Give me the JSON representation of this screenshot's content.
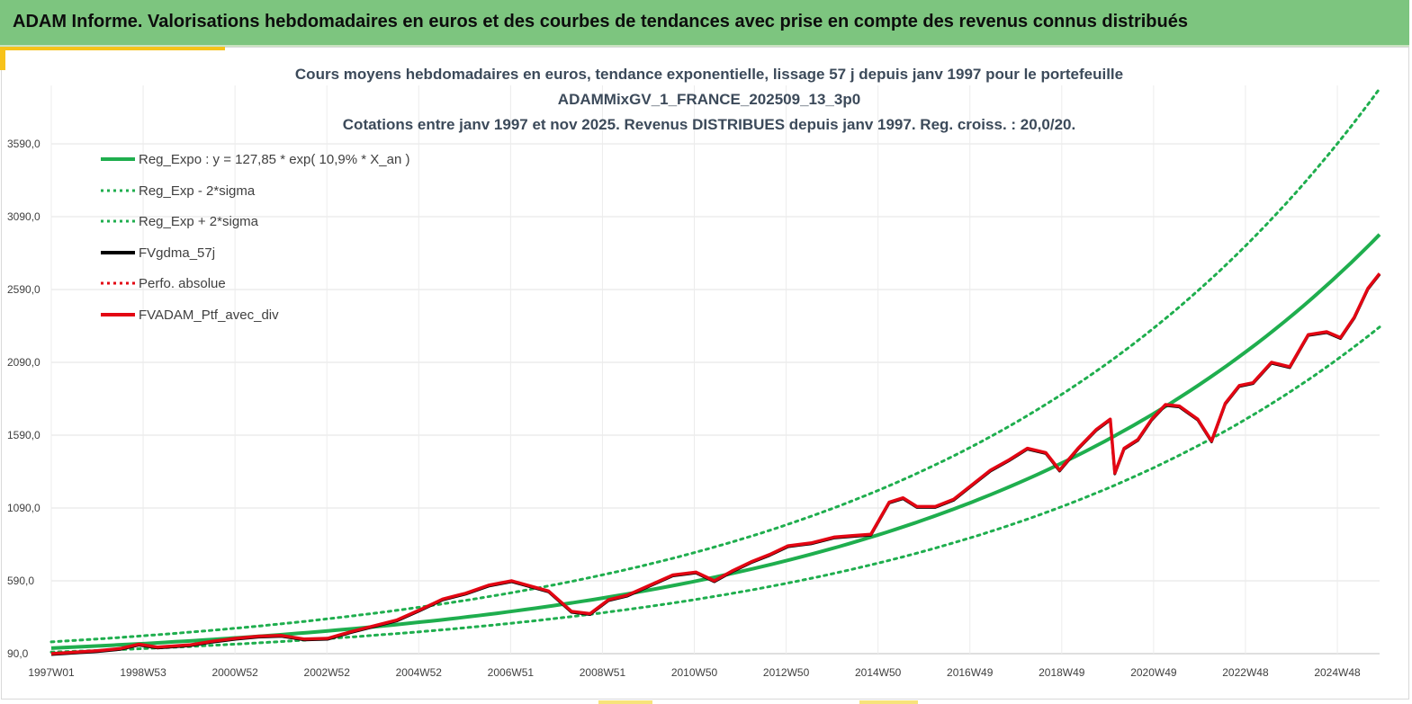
{
  "header": {
    "title": "ADAM Informe. Valorisations hebdomadaires en euros et des courbes de tendances avec prise en compte des revenus connus distribués"
  },
  "colors": {
    "banner": "#7dc57f",
    "accent": "#f7c21a",
    "trend": "#1fae4e",
    "smoothed": "#000000",
    "portfolio": "#e30613"
  },
  "chart_data": {
    "type": "line",
    "title_lines": [
      "Cours moyens hebdomadaires  en euros, tendance exponentielle, lissage 57 j depuis janv 1997 pour le portefeuille",
      "ADAMMixGV_1_FRANCE_202509_13_3p0",
      "Cotations  entre janv 1997 et nov 2025. Revenus DISTRIBUES depuis janv 1997. Reg. croiss. : 20,0/20."
    ],
    "x_ticks": [
      "1997W01",
      "1998W53",
      "2000W52",
      "2002W52",
      "2004W52",
      "2006W51",
      "2008W51",
      "2010W50",
      "2012W50",
      "2014W50",
      "2016W49",
      "2018W49",
      "2020W49",
      "2022W48",
      "2024W48"
    ],
    "x_range": [
      1997.0,
      2025.85
    ],
    "y_ticks": [
      "90,0",
      "590,0",
      "1090,0",
      "1590,0",
      "2090,0",
      "2590,0",
      "3090,0",
      "3590,0"
    ],
    "ylim": [
      90,
      3590
    ],
    "legend_position": "top-left",
    "grid": true,
    "series": [
      {
        "name": "Reg_Expo : y = 127,85 * exp( 10,9% *  X_an )",
        "style": "solid-green",
        "formula": {
          "a": 127.85,
          "rate": 0.109,
          "x0": 1997.0
        }
      },
      {
        "name": "Reg_Exp - 2*sigma",
        "style": "dotted-green",
        "formula": {
          "a": 100.5,
          "rate": 0.109,
          "x0": 1997.0
        }
      },
      {
        "name": "Reg_Exp + 2*sigma",
        "style": "dotted-green",
        "formula": {
          "a": 171.0,
          "rate": 0.109,
          "x0": 1997.0
        }
      },
      {
        "name": "FVgdma_57j",
        "style": "solid-black"
      },
      {
        "name": "Perfo. absolue",
        "style": "dotted-red"
      },
      {
        "name": "FVADAM_Ptf_avec_div",
        "style": "solid-red"
      }
    ],
    "portfolio_points": {
      "x": [
        1997.0,
        1997.5,
        1998.0,
        1998.5,
        1998.9,
        1999.3,
        2000.0,
        2000.5,
        2001.0,
        2001.5,
        2002.0,
        2002.5,
        2003.0,
        2003.5,
        2004.0,
        2004.5,
        2005.0,
        2005.5,
        2006.0,
        2006.5,
        2007.0,
        2007.4,
        2007.8,
        2008.3,
        2008.7,
        2009.1,
        2009.5,
        2010.0,
        2010.5,
        2011.0,
        2011.4,
        2011.8,
        2012.2,
        2012.6,
        2013.0,
        2013.5,
        2014.0,
        2014.4,
        2014.8,
        2015.2,
        2015.5,
        2015.8,
        2016.2,
        2016.6,
        2017.0,
        2017.4,
        2017.8,
        2018.2,
        2018.6,
        2018.9,
        2019.3,
        2019.7,
        2020.0,
        2020.1,
        2020.3,
        2020.6,
        2020.9,
        2021.2,
        2021.5,
        2021.9,
        2022.2,
        2022.5,
        2022.8,
        2023.1,
        2023.5,
        2023.9,
        2024.3,
        2024.7,
        2025.0,
        2025.3,
        2025.6,
        2025.85
      ],
      "y": [
        90,
        100,
        110,
        125,
        155,
        135,
        150,
        175,
        195,
        210,
        215,
        190,
        195,
        240,
        280,
        320,
        390,
        465,
        505,
        560,
        590,
        555,
        520,
        380,
        365,
        460,
        490,
        560,
        630,
        650,
        590,
        660,
        720,
        770,
        830,
        850,
        890,
        900,
        910,
        1130,
        1160,
        1100,
        1100,
        1150,
        1250,
        1350,
        1420,
        1500,
        1470,
        1350,
        1500,
        1630,
        1700,
        1330,
        1500,
        1560,
        1700,
        1800,
        1790,
        1700,
        1550,
        1810,
        1930,
        1950,
        2090,
        2060,
        2280,
        2300,
        2260,
        2400,
        2600,
        2700
      ]
    }
  }
}
